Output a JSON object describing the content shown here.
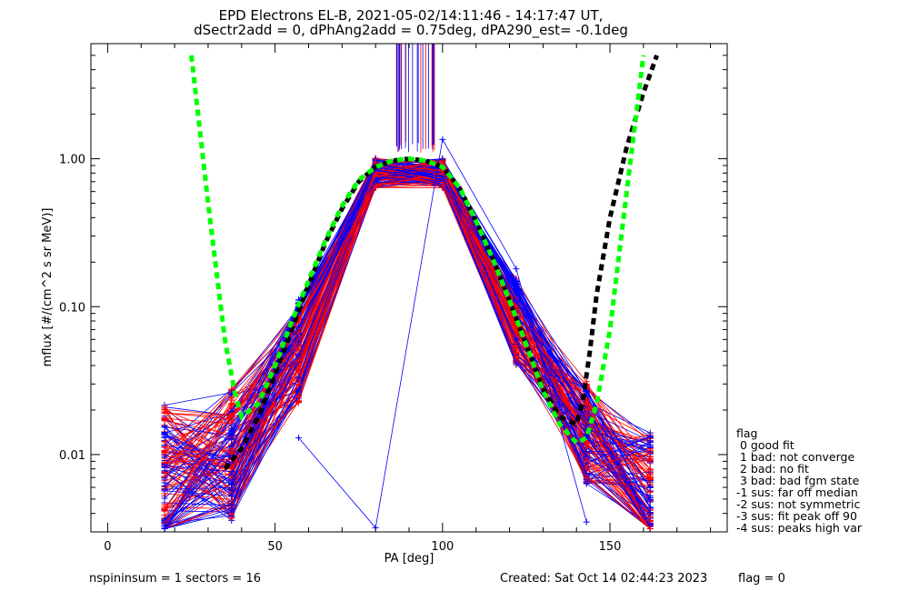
{
  "chart_data": {
    "type": "line",
    "title_line1": "EPD Electrons EL-B, 2021-05-02/14:11:46 - 14:17:47 UT,",
    "title_line2": "dSectr2add = 0, dPhAng2add = 0.75deg, dPA290_est=  -0.1deg",
    "xlabel": "PA [deg]",
    "ylabel": "mflux [#/(cm^2 s sr MeV)]",
    "xlim": [
      -5,
      185
    ],
    "ylim": [
      0.003,
      6.0
    ],
    "log_y": true,
    "xticks": [
      {
        "value": 0,
        "label": "0"
      },
      {
        "value": 50,
        "label": "50"
      },
      {
        "value": 100,
        "label": "100"
      },
      {
        "value": 150,
        "label": "150"
      }
    ],
    "yticks": [
      {
        "value": 0.01,
        "label": "0.01"
      },
      {
        "value": 0.1,
        "label": "0.10"
      },
      {
        "value": 1.0,
        "label": "1.00"
      }
    ],
    "pa_bins": [
      17,
      37,
      57,
      80,
      100,
      122,
      143,
      162
    ],
    "median_profile": [
      0.007,
      0.01,
      0.05,
      0.8,
      0.8,
      0.08,
      0.014,
      0.005
    ],
    "outlier_series_x": [
      57,
      80,
      100,
      122,
      143
    ],
    "outlier_series_y": [
      0.013,
      0.0032,
      1.35,
      0.18,
      0.0035
    ],
    "fit_green_x": [
      25,
      30,
      35,
      38,
      40,
      45,
      50,
      55,
      60,
      65,
      70,
      75,
      80,
      85,
      90,
      95,
      100,
      105,
      110,
      115,
      120,
      125,
      130,
      135,
      140,
      143,
      146,
      150,
      155,
      160
    ],
    "fit_green_y": [
      5.0,
      0.5,
      0.06,
      0.026,
      0.018,
      0.022,
      0.04,
      0.08,
      0.15,
      0.28,
      0.48,
      0.72,
      0.88,
      0.97,
      1.0,
      0.97,
      0.88,
      0.64,
      0.38,
      0.21,
      0.11,
      0.055,
      0.027,
      0.016,
      0.012,
      0.013,
      0.022,
      0.07,
      0.6,
      5.0
    ],
    "fit_black_x": [
      35,
      40,
      45,
      50,
      55,
      60,
      65,
      70,
      75,
      80,
      85,
      90,
      95,
      100,
      105,
      110,
      115,
      120,
      125,
      130,
      135,
      140,
      142,
      144,
      146,
      150,
      155,
      160,
      164
    ],
    "fit_black_y": [
      0.008,
      0.011,
      0.018,
      0.035,
      0.07,
      0.14,
      0.27,
      0.46,
      0.7,
      0.88,
      0.97,
      1.0,
      0.97,
      0.88,
      0.64,
      0.38,
      0.21,
      0.11,
      0.055,
      0.028,
      0.018,
      0.016,
      0.024,
      0.05,
      0.12,
      0.4,
      1.2,
      2.8,
      5.0
    ],
    "colors": {
      "series_a": "#ff0000",
      "series_b": "#0000ff",
      "fit_green": "#00ff00",
      "fit_black": "#000000"
    }
  },
  "legend": {
    "header": "flag",
    "items": [
      " 0 good fit",
      " 1 bad: not converge",
      " 2 bad: no fit",
      " 3 bad: bad fgm state",
      "-1 sus: far off median",
      "-2 sus: not symmetric",
      "-3 sus: fit peak off 90",
      "-4 sus: peaks high var"
    ]
  },
  "footer": {
    "left": "nspininsum =  1  sectors = 16",
    "created": "Created: Sat Oct 14 02:44:23 2023",
    "flag": "flag = 0"
  }
}
